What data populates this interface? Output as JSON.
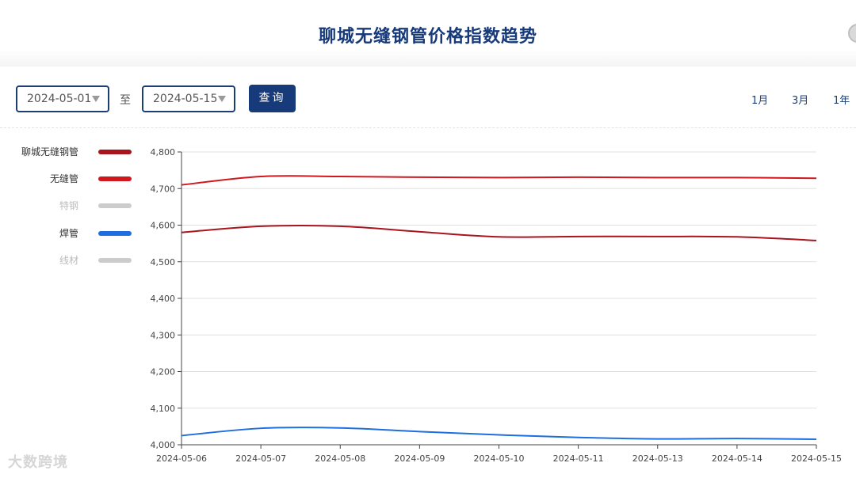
{
  "header": {
    "title": "聊城无缝钢管价格指数趋势"
  },
  "toolbar": {
    "start_date": "2024-05-01",
    "to_label": "至",
    "end_date": "2024-05-15",
    "query_label": "查询",
    "ranges": [
      "1月",
      "3月",
      "1年"
    ]
  },
  "legend": [
    {
      "name": "聊城无缝钢管",
      "color": "#a8151d",
      "active": true
    },
    {
      "name": "无缝管",
      "color": "#d0181e",
      "active": true
    },
    {
      "name": "特钢",
      "color": "#cccccc",
      "active": false
    },
    {
      "name": "焊管",
      "color": "#1e6ee0",
      "active": true
    },
    {
      "name": "线材",
      "color": "#cccccc",
      "active": false
    }
  ],
  "watermark": "大数跨境",
  "chart_data": {
    "type": "line",
    "x": [
      "2024-05-06",
      "2024-05-07",
      "2024-05-08",
      "2024-05-09",
      "2024-05-10",
      "2024-05-11",
      "2024-05-13",
      "2024-05-14",
      "2024-05-15"
    ],
    "ylim": [
      4000,
      4800
    ],
    "yticks": [
      "4,000",
      "4,100",
      "4,200",
      "4,300",
      "4,400",
      "4,500",
      "4,600",
      "4,700",
      "4,800"
    ],
    "grid": true,
    "legend_position": "left",
    "series": [
      {
        "name": "无缝管",
        "color": "#d0181e",
        "values": [
          4710,
          4733,
          4733,
          4731,
          4730,
          4731,
          4730,
          4730,
          4728
        ]
      },
      {
        "name": "聊城无缝钢管",
        "color": "#a8151d",
        "values": [
          4580,
          4597,
          4597,
          4582,
          4568,
          4569,
          4569,
          4568,
          4558
        ]
      },
      {
        "name": "焊管",
        "color": "#1e6ee0",
        "values": [
          4025,
          4045,
          4046,
          4036,
          4027,
          4020,
          4016,
          4017,
          4015
        ]
      }
    ]
  }
}
